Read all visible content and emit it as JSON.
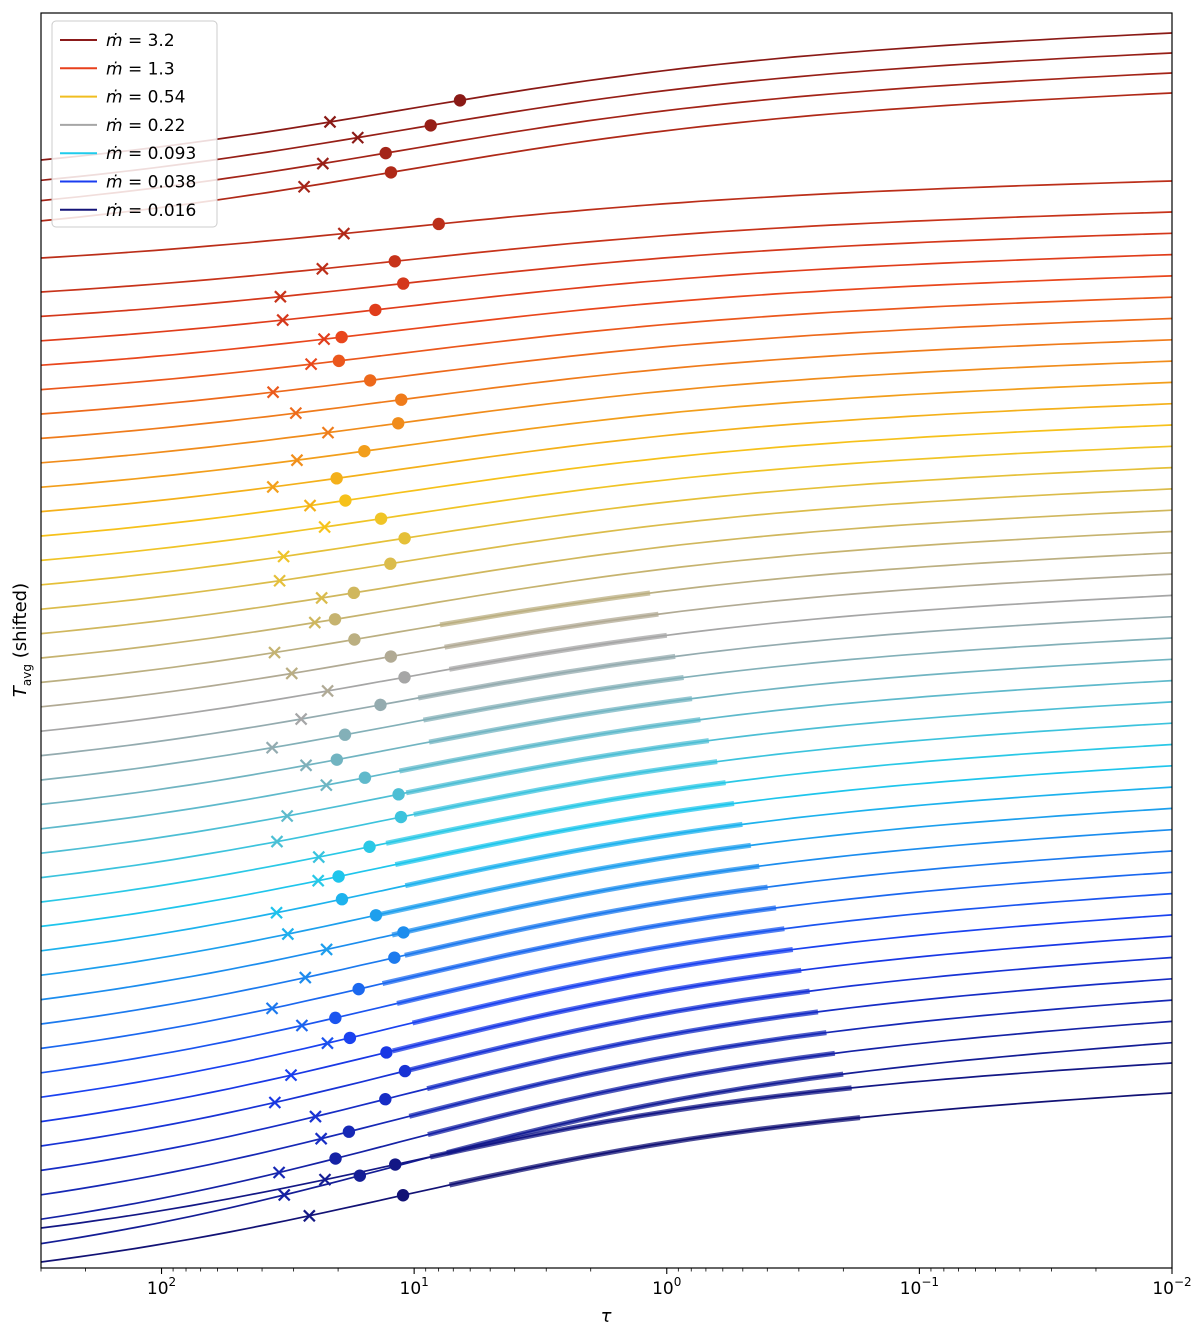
{
  "chart_data": {
    "type": "line",
    "title": "",
    "xlabel": "τ",
    "ylabel_main": "T",
    "ylabel_sub": "avg",
    "ylabel_suffix": " (shifted)",
    "x_scale": "log",
    "x_reversed": true,
    "xlim": [
      300,
      0.01
    ],
    "x_ticks": [
      100,
      10,
      1,
      0.1,
      0.01
    ],
    "x_tick_labels": [
      {
        "base": "10",
        "exp": "2"
      },
      {
        "base": "10",
        "exp": "1"
      },
      {
        "base": "10",
        "exp": "0"
      },
      {
        "base": "10",
        "exp": "−1"
      },
      {
        "base": "10",
        "exp": "−2"
      }
    ],
    "y_tick_labels_shown": false,
    "legend_position": "top-left",
    "legend": [
      {
        "prefix": "ṁ",
        "value": "3.2",
        "color": "#8b1a1a"
      },
      {
        "prefix": "ṁ",
        "value": "1.3",
        "color": "#e8401c"
      },
      {
        "prefix": "ṁ",
        "value": "0.54",
        "color": "#f0be20"
      },
      {
        "prefix": "ṁ",
        "value": "0.22",
        "color": "#a6a6a6"
      },
      {
        "prefix": "ṁ",
        "value": "0.093",
        "color": "#1ecbec"
      },
      {
        "prefix": "ṁ",
        "value": "0.038",
        "color": "#1a3cf0"
      },
      {
        "prefix": "ṁ",
        "value": "0.016",
        "color": "#141478"
      }
    ],
    "series_count": 47,
    "series_color_ramp": [
      "#8a1a16",
      "#e8401c",
      "#f7c71a",
      "#a6a6a6",
      "#1ecbec",
      "#1a3cf0",
      "#121275"
    ],
    "markers": {
      "dot": "filled circle",
      "cross": "x"
    }
  }
}
